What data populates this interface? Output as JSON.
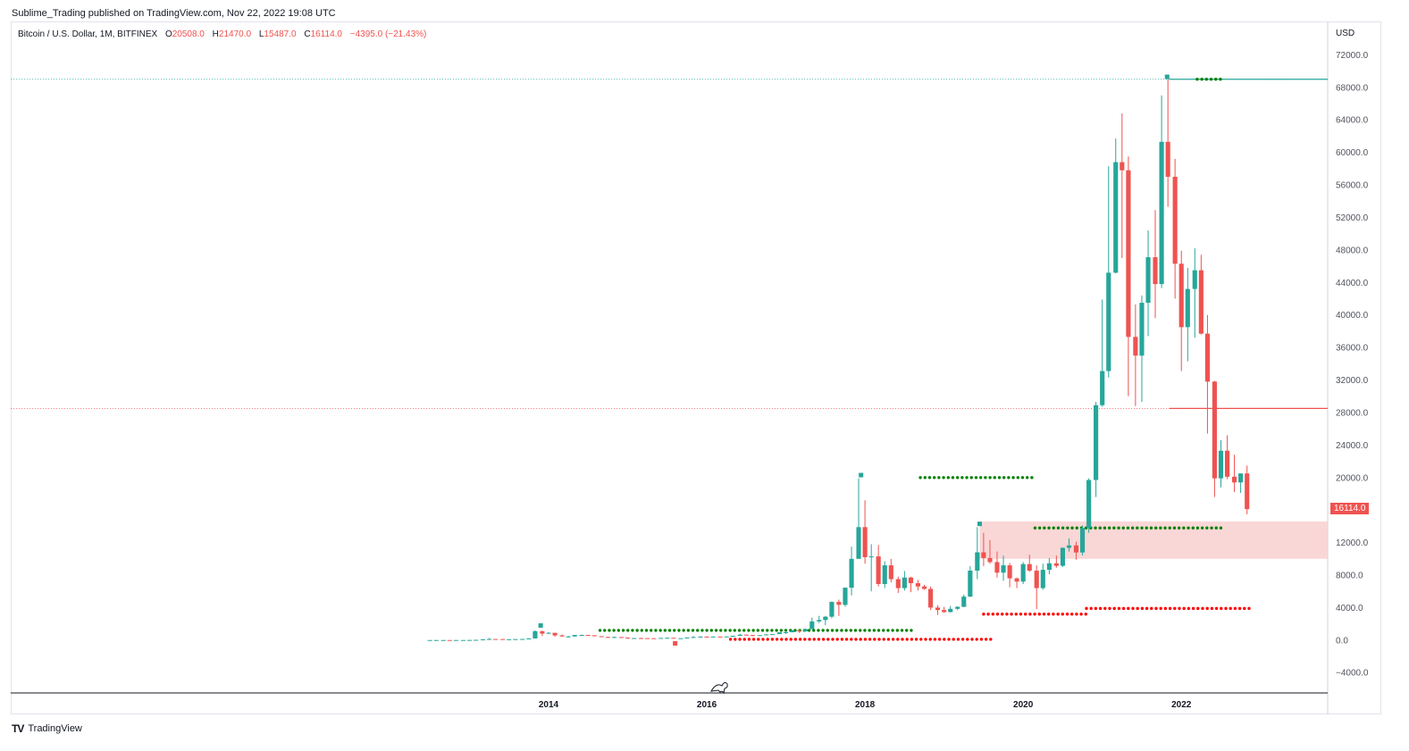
{
  "header": {
    "publish_line": "Sublime_Trading published on TradingView.com, Nov 22, 2022 19:08 UTC"
  },
  "legend": {
    "symbol": "Bitcoin / U.S. Dollar, 1M, BITFINEX",
    "open_label": "O",
    "open": "20508.0",
    "high_label": "H",
    "high": "21470.0",
    "low_label": "L",
    "low": "15487.0",
    "close_label": "C",
    "close": "16114.0",
    "change": "−4395.0 (−21.43%)"
  },
  "footer": {
    "logo_text": "TV",
    "brand": "TradingView"
  },
  "colors": {
    "up": "#26a69a",
    "down": "#ef5350",
    "dot_green": "#008000",
    "dot_red": "#ff0000",
    "zone_fill": "#f9d0d0"
  },
  "chart_data": {
    "type": "candlestick",
    "currency": "USD",
    "last_price": "16114.0",
    "y_ticks": [
      "72000.0",
      "68000.0",
      "64000.0",
      "60000.0",
      "56000.0",
      "52000.0",
      "48000.0",
      "44000.0",
      "40000.0",
      "36000.0",
      "32000.0",
      "28000.0",
      "24000.0",
      "20000.0",
      "16000.0",
      "12000.0",
      "8000.0",
      "4000.0",
      "0.0",
      "−4000.0"
    ],
    "ylim": [
      -6500,
      76000
    ],
    "x_ticks": [
      "2014",
      "2016",
      "2018",
      "2020",
      "2022"
    ],
    "xlim": [
      2007.2,
      2023.85
    ],
    "horizontal_lines": [
      {
        "y": 69000,
        "color": "#26a69a",
        "style": "dotted"
      },
      {
        "y": 28500,
        "color": "#ef5350",
        "style": "dotted"
      }
    ],
    "markers": [
      {
        "x": 2013.9,
        "y": 1800,
        "color": "#26a69a"
      },
      {
        "x": 2017.95,
        "y": 20300,
        "color": "#26a69a"
      },
      {
        "x": 2015.6,
        "y": -400,
        "color": "#ef5350"
      },
      {
        "x": 2019.45,
        "y": 14300,
        "color": "#26a69a"
      },
      {
        "x": 2021.82,
        "y": 69300,
        "color": "#26a69a"
      }
    ],
    "zone": {
      "x0": 2019.45,
      "x1": 2023.85,
      "y0": 10000,
      "y1": 14600
    },
    "dot_lines": [
      {
        "x0": 2014.65,
        "x1": 2018.6,
        "y": 1200,
        "color": "green"
      },
      {
        "x0": 2016.3,
        "x1": 2019.6,
        "y": 100,
        "color": "red"
      },
      {
        "x0": 2018.7,
        "x1": 2020.15,
        "y": 20000,
        "color": "green"
      },
      {
        "x0": 2020.15,
        "x1": 2022.5,
        "y": 13800,
        "color": "green"
      },
      {
        "x0": 2019.5,
        "x1": 2020.8,
        "y": 3200,
        "color": "red"
      },
      {
        "x0": 2020.8,
        "x1": 2022.9,
        "y": 3900,
        "color": "red"
      },
      {
        "x0": 2022.2,
        "x1": 2022.55,
        "y": 69000,
        "color": "green"
      }
    ],
    "candles": [
      {
        "x": 2012.5,
        "o": 7,
        "h": 9,
        "c": 9,
        "l": 7
      },
      {
        "x": 2012.58,
        "o": 9,
        "h": 11,
        "c": 10,
        "l": 8
      },
      {
        "x": 2012.67,
        "o": 10,
        "h": 13,
        "c": 12,
        "l": 9
      },
      {
        "x": 2012.75,
        "o": 12,
        "h": 13,
        "c": 11,
        "l": 10
      },
      {
        "x": 2012.83,
        "o": 11,
        "h": 13,
        "c": 12,
        "l": 10
      },
      {
        "x": 2012.92,
        "o": 12,
        "h": 14,
        "c": 13,
        "l": 12
      },
      {
        "x": 2013.0,
        "o": 13,
        "h": 20,
        "c": 20,
        "l": 13
      },
      {
        "x": 2013.08,
        "o": 20,
        "h": 35,
        "c": 34,
        "l": 19
      },
      {
        "x": 2013.17,
        "o": 34,
        "h": 100,
        "c": 93,
        "l": 33
      },
      {
        "x": 2013.25,
        "o": 93,
        "h": 260,
        "c": 139,
        "l": 50
      },
      {
        "x": 2013.33,
        "o": 139,
        "h": 140,
        "c": 129,
        "l": 80
      },
      {
        "x": 2013.42,
        "o": 129,
        "h": 130,
        "c": 97,
        "l": 80
      },
      {
        "x": 2013.5,
        "o": 97,
        "h": 110,
        "c": 106,
        "l": 65
      },
      {
        "x": 2013.58,
        "o": 106,
        "h": 130,
        "c": 129,
        "l": 100
      },
      {
        "x": 2013.67,
        "o": 129,
        "h": 150,
        "c": 141,
        "l": 120
      },
      {
        "x": 2013.75,
        "o": 141,
        "h": 210,
        "c": 206,
        "l": 120
      },
      {
        "x": 2013.83,
        "o": 206,
        "h": 1200,
        "c": 1100,
        "l": 200
      },
      {
        "x": 2013.92,
        "o": 1100,
        "h": 1160,
        "c": 800,
        "l": 500
      },
      {
        "x": 2014.0,
        "o": 800,
        "h": 980,
        "c": 900,
        "l": 750
      },
      {
        "x": 2014.08,
        "o": 900,
        "h": 850,
        "c": 580,
        "l": 400
      },
      {
        "x": 2014.17,
        "o": 580,
        "h": 700,
        "c": 450,
        "l": 440
      },
      {
        "x": 2014.25,
        "o": 450,
        "h": 520,
        "c": 450,
        "l": 350
      },
      {
        "x": 2014.33,
        "o": 450,
        "h": 630,
        "c": 630,
        "l": 430
      },
      {
        "x": 2014.42,
        "o": 630,
        "h": 680,
        "c": 640,
        "l": 550
      },
      {
        "x": 2014.5,
        "o": 640,
        "h": 650,
        "c": 590,
        "l": 570
      },
      {
        "x": 2014.58,
        "o": 590,
        "h": 600,
        "c": 480,
        "l": 450
      },
      {
        "x": 2014.67,
        "o": 480,
        "h": 490,
        "c": 390,
        "l": 370
      },
      {
        "x": 2014.75,
        "o": 390,
        "h": 420,
        "c": 340,
        "l": 280
      },
      {
        "x": 2014.83,
        "o": 340,
        "h": 450,
        "c": 380,
        "l": 310
      },
      {
        "x": 2014.92,
        "o": 380,
        "h": 390,
        "c": 320,
        "l": 300
      },
      {
        "x": 2015.0,
        "o": 320,
        "h": 320,
        "c": 220,
        "l": 160
      },
      {
        "x": 2015.08,
        "o": 220,
        "h": 260,
        "c": 255,
        "l": 210
      },
      {
        "x": 2015.17,
        "o": 255,
        "h": 300,
        "c": 245,
        "l": 240
      },
      {
        "x": 2015.25,
        "o": 245,
        "h": 260,
        "c": 235,
        "l": 215
      },
      {
        "x": 2015.33,
        "o": 235,
        "h": 245,
        "c": 230,
        "l": 225
      },
      {
        "x": 2015.42,
        "o": 230,
        "h": 265,
        "c": 263,
        "l": 220
      },
      {
        "x": 2015.5,
        "o": 263,
        "h": 315,
        "c": 285,
        "l": 255
      },
      {
        "x": 2015.58,
        "o": 285,
        "h": 290,
        "c": 230,
        "l": 200
      },
      {
        "x": 2015.67,
        "o": 230,
        "h": 245,
        "c": 236,
        "l": 225
      },
      {
        "x": 2015.75,
        "o": 236,
        "h": 330,
        "c": 314,
        "l": 235
      },
      {
        "x": 2015.83,
        "o": 314,
        "h": 500,
        "c": 377,
        "l": 310
      },
      {
        "x": 2015.92,
        "o": 377,
        "h": 465,
        "c": 430,
        "l": 350
      },
      {
        "x": 2016.0,
        "o": 430,
        "h": 460,
        "c": 370,
        "l": 350
      },
      {
        "x": 2016.08,
        "o": 370,
        "h": 440,
        "c": 437,
        "l": 365
      },
      {
        "x": 2016.17,
        "o": 437,
        "h": 440,
        "c": 416,
        "l": 405
      },
      {
        "x": 2016.25,
        "o": 416,
        "h": 470,
        "c": 448,
        "l": 410
      },
      {
        "x": 2016.33,
        "o": 448,
        "h": 550,
        "c": 531,
        "l": 440
      },
      {
        "x": 2016.42,
        "o": 531,
        "h": 780,
        "c": 673,
        "l": 530
      },
      {
        "x": 2016.5,
        "o": 673,
        "h": 700,
        "c": 624,
        "l": 600
      },
      {
        "x": 2016.58,
        "o": 624,
        "h": 630,
        "c": 575,
        "l": 480
      },
      {
        "x": 2016.67,
        "o": 575,
        "h": 615,
        "c": 609,
        "l": 570
      },
      {
        "x": 2016.75,
        "o": 609,
        "h": 720,
        "c": 700,
        "l": 605
      },
      {
        "x": 2016.83,
        "o": 700,
        "h": 750,
        "c": 742,
        "l": 690
      },
      {
        "x": 2016.92,
        "o": 742,
        "h": 970,
        "c": 960,
        "l": 740
      },
      {
        "x": 2017.0,
        "o": 960,
        "h": 1150,
        "c": 970,
        "l": 750
      },
      {
        "x": 2017.08,
        "o": 970,
        "h": 1200,
        "c": 1190,
        "l": 950
      },
      {
        "x": 2017.17,
        "o": 1190,
        "h": 1300,
        "c": 1080,
        "l": 890
      },
      {
        "x": 2017.25,
        "o": 1080,
        "h": 1430,
        "c": 1350,
        "l": 1070
      },
      {
        "x": 2017.33,
        "o": 1350,
        "h": 2770,
        "c": 2300,
        "l": 1350
      },
      {
        "x": 2017.42,
        "o": 2300,
        "h": 2990,
        "c": 2480,
        "l": 2100
      },
      {
        "x": 2017.5,
        "o": 2480,
        "h": 2980,
        "c": 2880,
        "l": 1840
      },
      {
        "x": 2017.58,
        "o": 2880,
        "h": 4750,
        "c": 4700,
        "l": 2700
      },
      {
        "x": 2017.67,
        "o": 4700,
        "h": 4980,
        "c": 4340,
        "l": 2980
      },
      {
        "x": 2017.75,
        "o": 4340,
        "h": 6470,
        "c": 6450,
        "l": 4110
      },
      {
        "x": 2017.83,
        "o": 6450,
        "h": 11500,
        "c": 10000,
        "l": 5500
      },
      {
        "x": 2017.92,
        "o": 10000,
        "h": 19900,
        "c": 13900,
        "l": 10700
      },
      {
        "x": 2018.0,
        "o": 13900,
        "h": 17200,
        "c": 10200,
        "l": 9400
      },
      {
        "x": 2018.08,
        "o": 10200,
        "h": 11800,
        "c": 10300,
        "l": 6000
      },
      {
        "x": 2018.17,
        "o": 10300,
        "h": 11700,
        "c": 6900,
        "l": 6600
      },
      {
        "x": 2018.25,
        "o": 6900,
        "h": 9700,
        "c": 9200,
        "l": 6400
      },
      {
        "x": 2018.33,
        "o": 9200,
        "h": 9990,
        "c": 7500,
        "l": 7100
      },
      {
        "x": 2018.42,
        "o": 7500,
        "h": 7800,
        "c": 6400,
        "l": 5800
      },
      {
        "x": 2018.5,
        "o": 6400,
        "h": 8500,
        "c": 7700,
        "l": 6100
      },
      {
        "x": 2018.58,
        "o": 7700,
        "h": 7800,
        "c": 7000,
        "l": 5900
      },
      {
        "x": 2018.67,
        "o": 7000,
        "h": 7400,
        "c": 6600,
        "l": 6100
      },
      {
        "x": 2018.75,
        "o": 6600,
        "h": 6800,
        "c": 6300,
        "l": 6200
      },
      {
        "x": 2018.83,
        "o": 6300,
        "h": 6600,
        "c": 4000,
        "l": 3700
      },
      {
        "x": 2018.92,
        "o": 4000,
        "h": 4300,
        "c": 3700,
        "l": 3100
      },
      {
        "x": 2019.0,
        "o": 3700,
        "h": 4100,
        "c": 3450,
        "l": 3350
      },
      {
        "x": 2019.08,
        "o": 3450,
        "h": 4200,
        "c": 3850,
        "l": 3400
      },
      {
        "x": 2019.17,
        "o": 3850,
        "h": 4150,
        "c": 4100,
        "l": 3700
      },
      {
        "x": 2019.25,
        "o": 4100,
        "h": 5600,
        "c": 5350,
        "l": 4050
      },
      {
        "x": 2019.33,
        "o": 5350,
        "h": 9100,
        "c": 8550,
        "l": 5300
      },
      {
        "x": 2019.42,
        "o": 8550,
        "h": 13900,
        "c": 10800,
        "l": 7500
      },
      {
        "x": 2019.5,
        "o": 10800,
        "h": 13200,
        "c": 10100,
        "l": 9100
      },
      {
        "x": 2019.58,
        "o": 10100,
        "h": 12300,
        "c": 9600,
        "l": 9400
      },
      {
        "x": 2019.67,
        "o": 9600,
        "h": 10900,
        "c": 8300,
        "l": 7700
      },
      {
        "x": 2019.75,
        "o": 8300,
        "h": 10400,
        "c": 9200,
        "l": 7300
      },
      {
        "x": 2019.83,
        "o": 9200,
        "h": 9500,
        "c": 7600,
        "l": 6500
      },
      {
        "x": 2019.92,
        "o": 7600,
        "h": 7700,
        "c": 7200,
        "l": 6400
      },
      {
        "x": 2020.0,
        "o": 7200,
        "h": 9600,
        "c": 9350,
        "l": 6900
      },
      {
        "x": 2020.08,
        "o": 9350,
        "h": 10500,
        "c": 8550,
        "l": 8400
      },
      {
        "x": 2020.17,
        "o": 8550,
        "h": 9200,
        "c": 6400,
        "l": 3800
      },
      {
        "x": 2020.25,
        "o": 6400,
        "h": 9400,
        "c": 8650,
        "l": 6200
      },
      {
        "x": 2020.33,
        "o": 8650,
        "h": 10100,
        "c": 9450,
        "l": 8100
      },
      {
        "x": 2020.42,
        "o": 9450,
        "h": 10400,
        "c": 9140,
        "l": 8900
      },
      {
        "x": 2020.5,
        "o": 9140,
        "h": 11400,
        "c": 11350,
        "l": 9000
      },
      {
        "x": 2020.58,
        "o": 11350,
        "h": 12500,
        "c": 11650,
        "l": 10900
      },
      {
        "x": 2020.67,
        "o": 11650,
        "h": 12100,
        "c": 10780,
        "l": 9900
      },
      {
        "x": 2020.75,
        "o": 10780,
        "h": 14100,
        "c": 13800,
        "l": 10400
      },
      {
        "x": 2020.83,
        "o": 13800,
        "h": 19900,
        "c": 19700,
        "l": 13200
      },
      {
        "x": 2020.92,
        "o": 19700,
        "h": 29300,
        "c": 28900,
        "l": 17600
      },
      {
        "x": 2021.0,
        "o": 28900,
        "h": 41900,
        "c": 33100,
        "l": 28700
      },
      {
        "x": 2021.08,
        "o": 33100,
        "h": 58300,
        "c": 45200,
        "l": 32300
      },
      {
        "x": 2021.17,
        "o": 45200,
        "h": 61700,
        "c": 58800,
        "l": 45100
      },
      {
        "x": 2021.25,
        "o": 58800,
        "h": 64800,
        "c": 57800,
        "l": 47000
      },
      {
        "x": 2021.33,
        "o": 57800,
        "h": 59500,
        "c": 37300,
        "l": 30000
      },
      {
        "x": 2021.42,
        "o": 37300,
        "h": 41300,
        "c": 35000,
        "l": 28800
      },
      {
        "x": 2021.5,
        "o": 35000,
        "h": 42400,
        "c": 41500,
        "l": 29300
      },
      {
        "x": 2021.58,
        "o": 41500,
        "h": 50400,
        "c": 47100,
        "l": 37400
      },
      {
        "x": 2021.67,
        "o": 47100,
        "h": 52900,
        "c": 43800,
        "l": 39600
      },
      {
        "x": 2021.75,
        "o": 43800,
        "h": 67000,
        "c": 61300,
        "l": 43300
      },
      {
        "x": 2021.83,
        "o": 61300,
        "h": 69000,
        "c": 57000,
        "l": 53300
      },
      {
        "x": 2021.92,
        "o": 57000,
        "h": 59200,
        "c": 46300,
        "l": 42000
      },
      {
        "x": 2022.0,
        "o": 46300,
        "h": 47900,
        "c": 38500,
        "l": 33100
      },
      {
        "x": 2022.08,
        "o": 38500,
        "h": 45800,
        "c": 43200,
        "l": 34300
      },
      {
        "x": 2022.17,
        "o": 43200,
        "h": 48200,
        "c": 45500,
        "l": 37200
      },
      {
        "x": 2022.25,
        "o": 45500,
        "h": 47400,
        "c": 37700,
        "l": 37600
      },
      {
        "x": 2022.33,
        "o": 37700,
        "h": 40000,
        "c": 31800,
        "l": 25400
      },
      {
        "x": 2022.42,
        "o": 31800,
        "h": 31900,
        "c": 19900,
        "l": 17600
      },
      {
        "x": 2022.5,
        "o": 19900,
        "h": 24600,
        "c": 23300,
        "l": 18800
      },
      {
        "x": 2022.58,
        "o": 23300,
        "h": 25200,
        "c": 20100,
        "l": 19800
      },
      {
        "x": 2022.67,
        "o": 20100,
        "h": 22800,
        "c": 19400,
        "l": 18200
      },
      {
        "x": 2022.75,
        "o": 19400,
        "h": 20500,
        "c": 20500,
        "l": 18100
      },
      {
        "x": 2022.83,
        "o": 20508,
        "h": 21470,
        "c": 16114,
        "l": 15487
      }
    ]
  }
}
